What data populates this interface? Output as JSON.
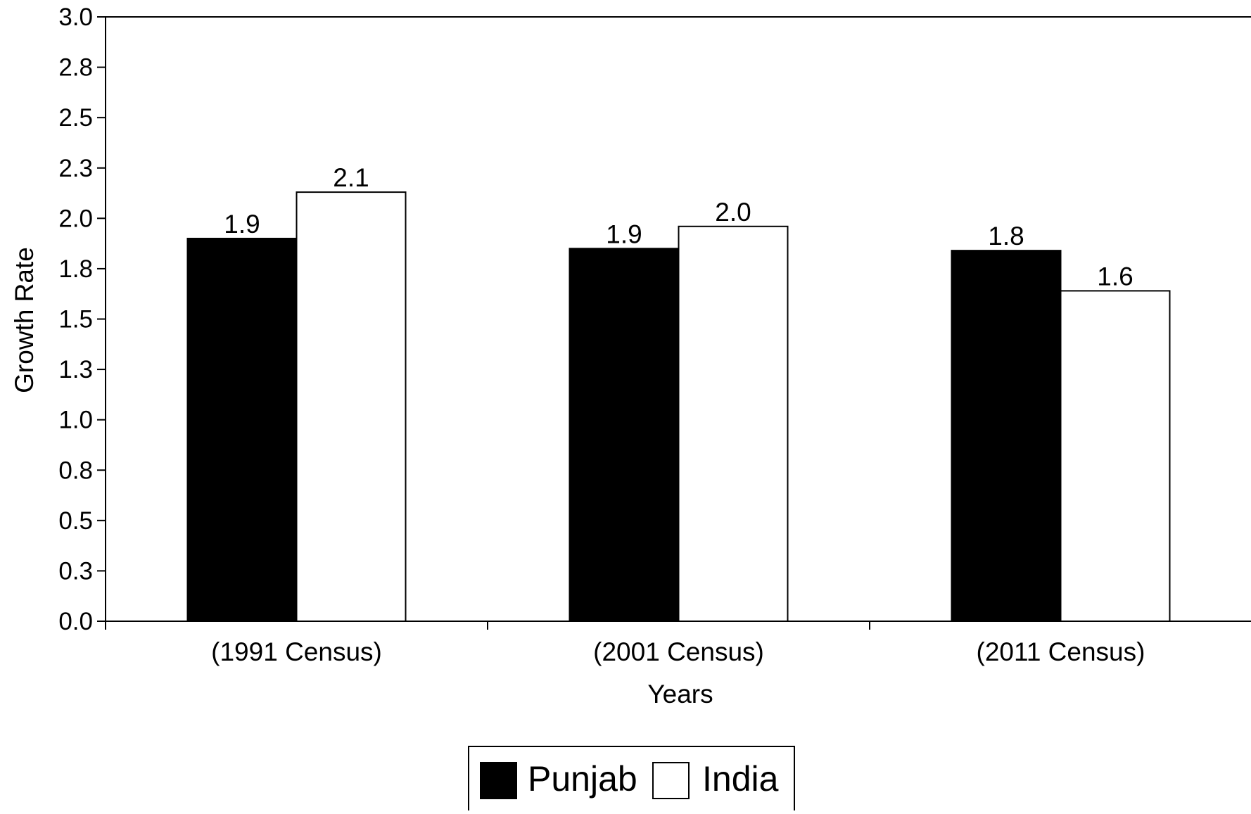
{
  "chart_data": {
    "type": "bar",
    "title": "",
    "xlabel": "Years",
    "ylabel": "Growth Rate",
    "ylim": [
      0,
      3
    ],
    "y_ticks": [
      "0.0",
      "0.3",
      "0.5",
      "0.8",
      "1.0",
      "1.3",
      "1.5",
      "1.8",
      "2.0",
      "2.3",
      "2.5",
      "2.8",
      "3.0"
    ],
    "categories": [
      "(1991 Census)",
      "(2001 Census)",
      "(2011 Census)"
    ],
    "series": [
      {
        "name": "Punjab",
        "color": "#000000",
        "values": [
          1.9,
          1.85,
          1.84
        ],
        "labels": [
          "1.9",
          "1.9",
          "1.8"
        ]
      },
      {
        "name": "India",
        "color": "#ffffff",
        "values": [
          2.13,
          1.96,
          1.64
        ],
        "labels": [
          "2.1",
          "2.0",
          "1.6"
        ]
      }
    ],
    "grid": false,
    "legend_position": "bottom-center"
  }
}
